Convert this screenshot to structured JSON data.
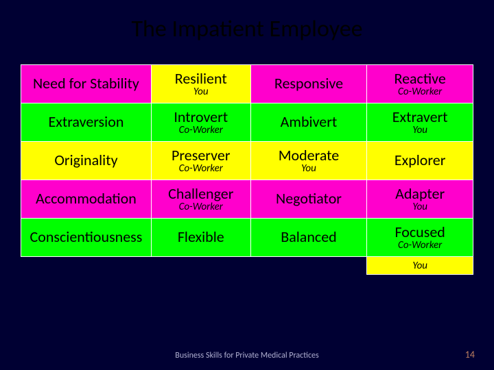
{
  "title": "The Impatient Employee",
  "footer": "Business Skills for Private Medical Practices",
  "pageNumber": "14",
  "colors": {
    "magenta": "#ff00cc",
    "yellow": "#ffff00",
    "green": "#00ff00",
    "navy": "#000033"
  },
  "columnWidths": [
    "190px",
    "145px",
    "170px",
    "155px"
  ],
  "rows": [
    {
      "cells": [
        {
          "main": "Need for Stability",
          "sub": "",
          "bg": "#ff00cc"
        },
        {
          "main": "Resilient",
          "sub": "You",
          "bg": "#ffff00"
        },
        {
          "main": "Responsive",
          "sub": "",
          "bg": "#ff00cc"
        },
        {
          "main": "Reactive",
          "sub": "Co-Worker",
          "bg": "#ff00cc"
        }
      ]
    },
    {
      "cells": [
        {
          "main": "Extraversion",
          "sub": "",
          "bg": "#00ff00"
        },
        {
          "main": "Introvert",
          "sub": "Co-Worker",
          "bg": "#00ff00"
        },
        {
          "main": "Ambivert",
          "sub": "",
          "bg": "#00ff00"
        },
        {
          "main": "Extravert",
          "sub": "You",
          "bg": "#00ff00"
        }
      ]
    },
    {
      "cells": [
        {
          "main": "Originality",
          "sub": "",
          "bg": "#ffff00"
        },
        {
          "main": "Preserver",
          "sub": "Co-Worker",
          "bg": "#ffff00"
        },
        {
          "main": "Moderate",
          "sub": "You",
          "bg": "#ffff00"
        },
        {
          "main": "Explorer",
          "sub": "",
          "bg": "#ffff00"
        }
      ]
    },
    {
      "cells": [
        {
          "main": "Accommodation",
          "sub": "",
          "bg": "#ff00cc"
        },
        {
          "main": "Challenger",
          "sub": "Co-Worker",
          "bg": "#ff00cc"
        },
        {
          "main": "Negotiator",
          "sub": "",
          "bg": "#ff00cc"
        },
        {
          "main": "Adapter",
          "sub": "You",
          "bg": "#ff00cc"
        }
      ]
    },
    {
      "cells": [
        {
          "main": "Conscientiousness",
          "sub": "",
          "bg": "#00ff00"
        },
        {
          "main": "Flexible",
          "sub": "",
          "bg": "#00ff00"
        },
        {
          "main": "Balanced",
          "sub": "",
          "bg": "#00ff00"
        },
        {
          "main": "Focused",
          "sub": "Co-Worker",
          "bg": "#00ff00"
        }
      ]
    }
  ],
  "extraRow": {
    "cells": [
      {
        "text": "",
        "bg": "#000033",
        "noborder": true
      },
      {
        "text": "",
        "bg": "#000033",
        "noborder": true
      },
      {
        "text": "",
        "bg": "#000033",
        "noborder": true
      },
      {
        "text": "You",
        "bg": "#ffff00"
      }
    ]
  }
}
